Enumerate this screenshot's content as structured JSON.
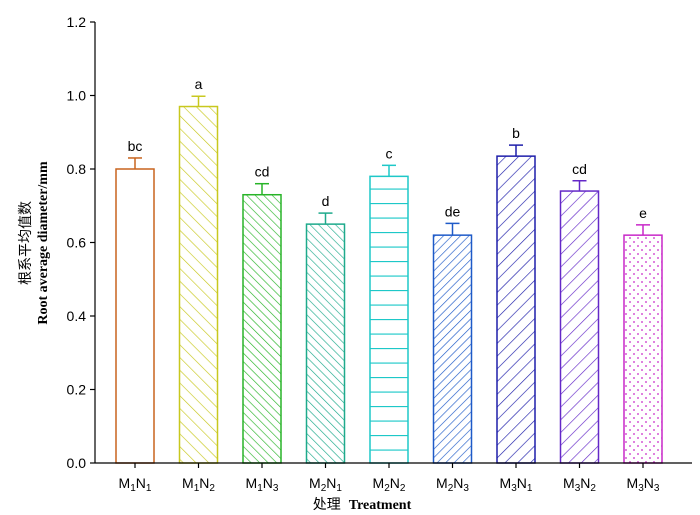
{
  "chart_data": {
    "type": "bar",
    "ylabel_cn": "根系平均值数",
    "ylabel_en": "Root average diameter/mm",
    "xlabel_cn": "处理",
    "xlabel_en": "Treatment",
    "ylim": [
      0,
      1.2
    ],
    "yticks": [
      "0.0",
      "0.2",
      "0.4",
      "0.6",
      "0.8",
      "1.0",
      "1.2"
    ],
    "grid": false,
    "categories": [
      {
        "m": "1",
        "n": "1"
      },
      {
        "m": "1",
        "n": "2"
      },
      {
        "m": "1",
        "n": "3"
      },
      {
        "m": "2",
        "n": "1"
      },
      {
        "m": "2",
        "n": "2"
      },
      {
        "m": "2",
        "n": "3"
      },
      {
        "m": "3",
        "n": "1"
      },
      {
        "m": "3",
        "n": "2"
      },
      {
        "m": "3",
        "n": "3"
      }
    ],
    "values": [
      0.8,
      0.97,
      0.73,
      0.65,
      0.78,
      0.62,
      0.835,
      0.74,
      0.62
    ],
    "errors": [
      0.03,
      0.028,
      0.03,
      0.03,
      0.03,
      0.032,
      0.03,
      0.028,
      0.028
    ],
    "significance": [
      "bc",
      "a",
      "cd",
      "d",
      "c",
      "de",
      "b",
      "cd",
      "e"
    ],
    "colors": [
      "#c8641e",
      "#c8c81e",
      "#28b428",
      "#1eaa8c",
      "#1ec8c8",
      "#1e5ac8",
      "#1e1eaa",
      "#6428c8",
      "#c828c8"
    ],
    "patterns": [
      "none",
      "diag-wide",
      "diag-dense",
      "diag-dense",
      "horizontal",
      "back-diag-dense",
      "back-diag-wide",
      "back-diag-wide",
      "dots"
    ]
  }
}
